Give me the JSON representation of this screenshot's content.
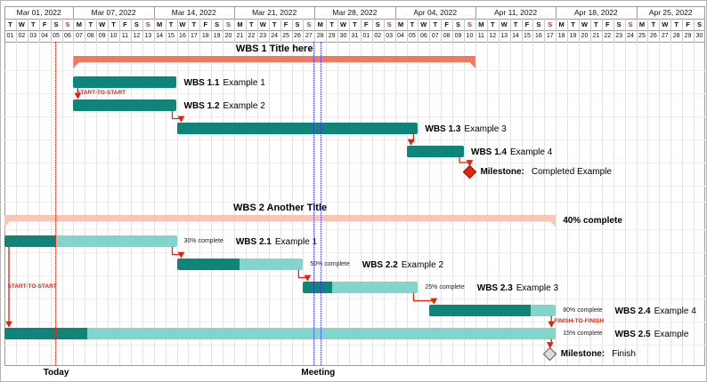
{
  "palette": {
    "teal": "#0f8478",
    "teal_light": "#82d5cb",
    "salmon": "#f5785e",
    "salmon_light": "#f9c5b5",
    "red": "#e0250f",
    "blue": "#2f2fd3",
    "milestone_gray": "#dcdcdc",
    "grid_dark": "#9c9c9c",
    "grid_day": "#c9c9c9",
    "grid_chart": "#e4e4e4",
    "grid_row": "#efefef"
  },
  "calendar": {
    "weeks": [
      {
        "label": "Mar 01, 2022",
        "start": 0,
        "span": 6
      },
      {
        "label": "Mar 07, 2022",
        "start": 6,
        "span": 7
      },
      {
        "label": "Mar 14, 2022",
        "start": 13,
        "span": 7
      },
      {
        "label": "Mar 21, 2022",
        "start": 20,
        "span": 7
      },
      {
        "label": "Mar 28, 2022",
        "start": 27,
        "span": 7
      },
      {
        "label": "Apr 04, 2022",
        "start": 34,
        "span": 7
      },
      {
        "label": "Apr 11, 2022",
        "start": 41,
        "span": 7
      },
      {
        "label": "Apr 18, 2022",
        "start": 48,
        "span": 7
      },
      {
        "label": "Apr 25, 2022",
        "start": 55,
        "span": 6
      }
    ],
    "day_letters": [
      "T",
      "W",
      "T",
      "F",
      "S",
      "S",
      "M",
      "T",
      "W",
      "T",
      "F",
      "S",
      "S",
      "M",
      "T",
      "W",
      "T",
      "F",
      "S",
      "S",
      "M",
      "T",
      "W",
      "T",
      "F",
      "S",
      "S",
      "M",
      "T",
      "W",
      "T",
      "F",
      "S",
      "S",
      "M",
      "T",
      "W",
      "T",
      "F",
      "S",
      "S",
      "M",
      "T",
      "W",
      "T",
      "F",
      "S",
      "S",
      "M",
      "T",
      "W",
      "T",
      "F",
      "S",
      "S",
      "M",
      "T",
      "W",
      "T",
      "F",
      "S"
    ],
    "day_numbers": [
      "01",
      "02",
      "03",
      "04",
      "05",
      "06",
      "07",
      "08",
      "09",
      "10",
      "11",
      "12",
      "13",
      "14",
      "15",
      "16",
      "17",
      "18",
      "19",
      "20",
      "21",
      "22",
      "23",
      "24",
      "25",
      "26",
      "27",
      "28",
      "29",
      "30",
      "31",
      "01",
      "02",
      "03",
      "04",
      "05",
      "06",
      "07",
      "08",
      "09",
      "10",
      "11",
      "12",
      "13",
      "14",
      "15",
      "16",
      "17",
      "18",
      "19",
      "20",
      "21",
      "22",
      "23",
      "24",
      "25",
      "26",
      "27",
      "28",
      "29",
      "30"
    ],
    "sundays": [
      5,
      12,
      19,
      26,
      33,
      40,
      47,
      54
    ]
  },
  "chart_data": {
    "type": "gantt",
    "date_range": {
      "start": "2022-03-01",
      "end": "2022-04-30"
    },
    "rows": [
      {
        "kind": "group",
        "id": "wbs1",
        "row": 0,
        "name": "WBS 1",
        "title": "Title here",
        "start": 6,
        "end": 41,
        "start_date": "2022-03-07",
        "end_date": "2022-04-10"
      },
      {
        "kind": "task",
        "id": "wbs1.1",
        "row": 1,
        "name": "WBS 1.1",
        "title": "Example 1",
        "start": 6,
        "end": 15,
        "start_date": "2022-03-07",
        "end_date": "2022-03-15"
      },
      {
        "kind": "task",
        "id": "wbs1.2",
        "row": 2,
        "name": "WBS 1.2",
        "title": "Example 2",
        "start": 6,
        "end": 15,
        "start_date": "2022-03-07",
        "end_date": "2022-03-15"
      },
      {
        "kind": "task",
        "id": "wbs1.3",
        "row": 3,
        "name": "WBS 1.3",
        "title": "Example 3",
        "start": 15,
        "end": 36,
        "start_date": "2022-03-16",
        "end_date": "2022-04-05"
      },
      {
        "kind": "task",
        "id": "wbs1.4",
        "row": 4,
        "name": "WBS 1.4",
        "title": "Example 4",
        "start": 35,
        "end": 40,
        "start_date": "2022-04-05",
        "end_date": "2022-04-09"
      },
      {
        "kind": "milestone",
        "id": "m1",
        "row": 5,
        "name": "Milestone:",
        "title": "Completed Example",
        "day": 40,
        "date": "2022-04-10",
        "color": "red"
      },
      {
        "kind": "group",
        "id": "wbs2",
        "row": 7,
        "name": "WBS 2",
        "title": "Another Title",
        "start": 0,
        "end": 48,
        "start_date": "2022-03-01",
        "end_date": "2022-04-17",
        "progress": 40,
        "percent_label": "40% complete"
      },
      {
        "kind": "task",
        "id": "wbs2.1",
        "row": 8,
        "name": "WBS 2.1",
        "title": "Example 1",
        "start": 0,
        "end": 15,
        "start_date": "2022-03-01",
        "end_date": "2022-03-15",
        "progress": 30,
        "percent_label": "30% complete"
      },
      {
        "kind": "task",
        "id": "wbs2.2",
        "row": 9,
        "name": "WBS 2.2",
        "title": "Example 2",
        "start": 15,
        "end": 26,
        "start_date": "2022-03-16",
        "end_date": "2022-03-26",
        "progress": 50,
        "percent_label": "50% complete"
      },
      {
        "kind": "task",
        "id": "wbs2.3",
        "row": 10,
        "name": "WBS 2.3",
        "title": "Example 3",
        "start": 26,
        "end": 36,
        "start_date": "2022-03-27",
        "end_date": "2022-04-05",
        "progress": 25,
        "percent_label": "25% complete"
      },
      {
        "kind": "task",
        "id": "wbs2.4",
        "row": 11,
        "name": "WBS 2.4",
        "title": "Example 4",
        "start": 37,
        "end": 48,
        "start_date": "2022-04-07",
        "end_date": "2022-04-17",
        "progress": 80,
        "percent_label": "80% complete"
      },
      {
        "kind": "task",
        "id": "wbs2.5",
        "row": 12,
        "name": "WBS 2.5",
        "title": "Example",
        "start": 0,
        "end": 48,
        "start_date": "2022-03-01",
        "end_date": "2022-04-17",
        "progress": 15,
        "percent_label": "15% complete"
      },
      {
        "kind": "milestone",
        "id": "m2",
        "row": 13,
        "name": "Milestone:",
        "title": "Finish",
        "day": 47,
        "date": "2022-04-17",
        "color": "gray"
      }
    ],
    "links": [
      {
        "type": "start-to-start",
        "from": "wbs1.1",
        "to": "wbs1.2",
        "label": "START-TO-START"
      },
      {
        "type": "finish-to-start",
        "from": "wbs1.2",
        "to": "wbs1.3"
      },
      {
        "type": "finish-to-start",
        "from": "wbs1.3",
        "to": "wbs1.4"
      },
      {
        "type": "finish-to-start",
        "from": "wbs1.4",
        "to": "m1"
      },
      {
        "type": "finish-to-start",
        "from": "wbs2.1",
        "to": "wbs2.2"
      },
      {
        "type": "finish-to-start",
        "from": "wbs2.2",
        "to": "wbs2.3"
      },
      {
        "type": "finish-to-start",
        "from": "wbs2.3",
        "to": "wbs2.4"
      },
      {
        "type": "start-to-start",
        "from": "wbs2.1",
        "to": "wbs2.5",
        "label": "START-TO-START"
      },
      {
        "type": "finish-to-finish",
        "from": "wbs2.4",
        "to": "wbs2.5",
        "label": "FINISH-TO-FINISH"
      },
      {
        "type": "finish-to-start",
        "from": "wbs2.5",
        "to": "m2"
      }
    ],
    "markers": {
      "today": {
        "label": "Today",
        "date": "2022-03-05",
        "day": 4.5
      },
      "meeting": {
        "label": "Meeting",
        "date": "2022-03-28",
        "day": 27
      }
    }
  }
}
